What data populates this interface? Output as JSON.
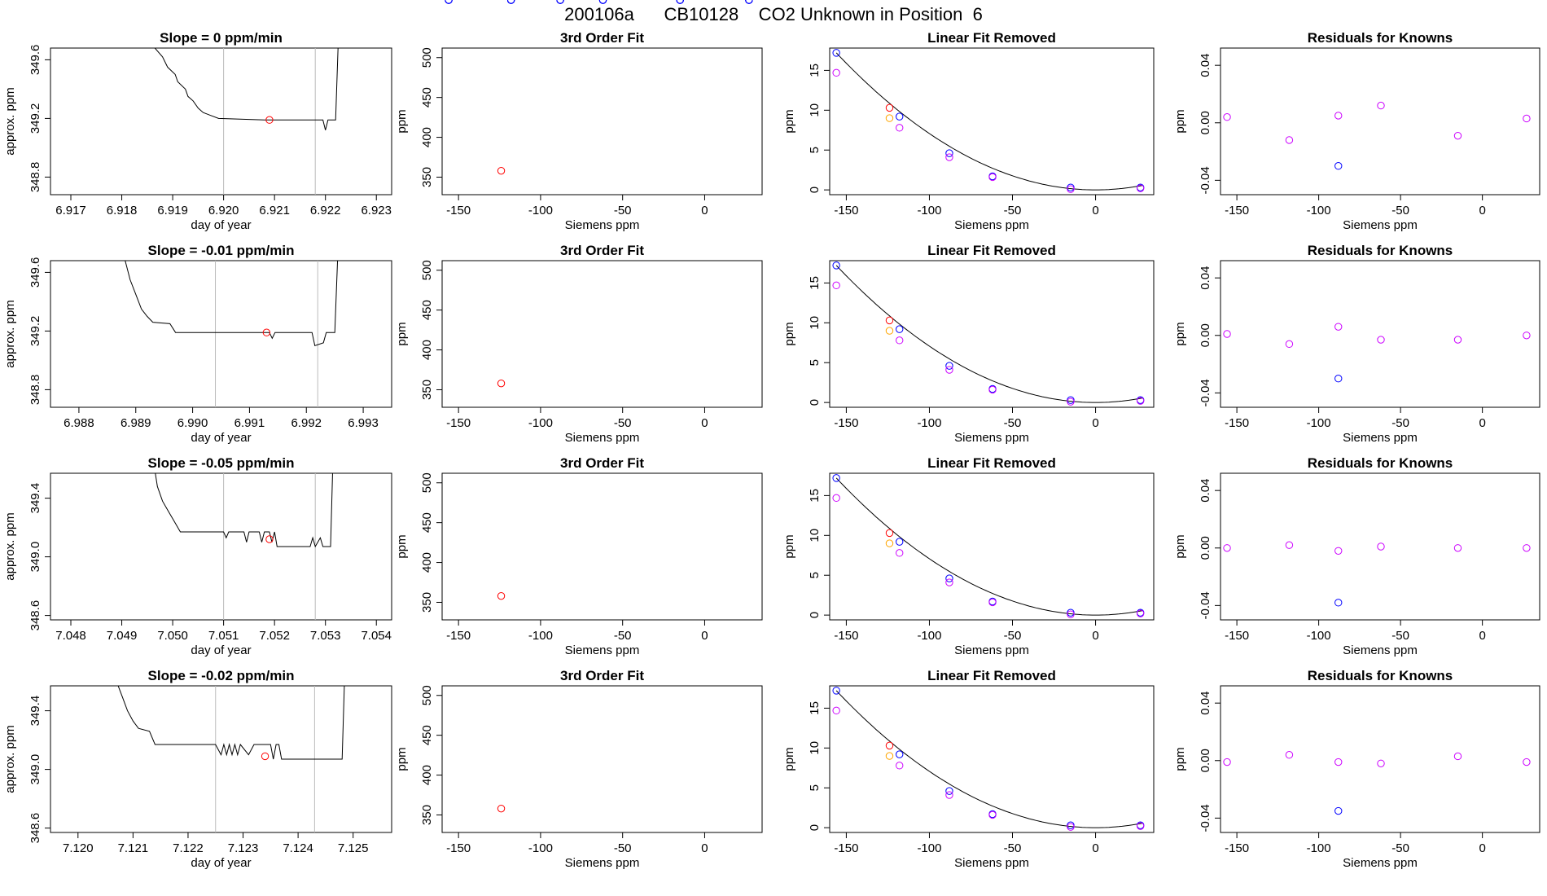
{
  "title": "200106a      CB10128    CO2 Unknown in Position  6",
  "siemens_x": [
    -156,
    -124,
    -118,
    -88,
    -62,
    -15,
    27
  ],
  "fit_y": {
    "ylim": [
      328,
      512
    ],
    "yticks": [
      350,
      400,
      450,
      500
    ],
    "ytick_labels": [
      "350",
      "400",
      "450",
      "500"
    ]
  },
  "linfit_known_y": [
    17.2,
    9.2,
    4.6,
    1.7,
    0.3,
    0.3
  ],
  "linfit_alt_y": [
    14.7,
    7.8,
    4.1,
    1.6,
    0.1,
    0.2
  ],
  "colors": {
    "known": "#0000ff",
    "unknown": "#ff0000",
    "alt": "#cc00ff",
    "orange": "#ffa500"
  },
  "rows": [
    {
      "slope_title": "Slope =  0  ppm/min",
      "ts_xlim": [
        6.9166,
        6.9233
      ],
      "ts_xticks": [
        "6.917",
        "6.918",
        "6.919",
        "6.920",
        "6.921",
        "6.922",
        "6.923"
      ],
      "ts_ylim": [
        348.68,
        349.68
      ],
      "ts_yticks": [
        "348.8",
        "349.2",
        "349.6"
      ],
      "ts_vlines": [
        6.92,
        6.9218
      ],
      "ts_line": [
        [
          6.9186,
          349.7
        ],
        [
          6.9188,
          349.62
        ],
        [
          6.9189,
          349.55
        ],
        [
          6.91905,
          349.5
        ],
        [
          6.9191,
          349.45
        ],
        [
          6.91925,
          349.4
        ],
        [
          6.9193,
          349.35
        ],
        [
          6.9194,
          349.32
        ],
        [
          6.9195,
          349.27
        ],
        [
          6.9196,
          349.24
        ],
        [
          6.91975,
          349.22
        ],
        [
          6.9199,
          349.2
        ],
        [
          6.9208,
          349.19
        ],
        [
          6.92195,
          349.19
        ],
        [
          6.922,
          349.12
        ],
        [
          6.92205,
          349.19
        ],
        [
          6.9222,
          349.19
        ],
        [
          6.92225,
          349.7
        ]
      ],
      "ts_point": [
        6.9209,
        349.19
      ],
      "fit_unknown": [
        -124,
        358
      ],
      "linfit_unknown": [
        -124,
        10.3
      ],
      "linfit_orange": [
        -124,
        9.0
      ],
      "resid_alt": [
        [
          -156,
          0.004
        ],
        [
          -118,
          -0.012
        ],
        [
          -88,
          0.005
        ],
        [
          -62,
          0.012
        ],
        [
          -15,
          -0.009
        ],
        [
          27,
          0.003
        ]
      ],
      "resid_known": [
        [
          -88,
          -0.03
        ]
      ]
    },
    {
      "slope_title": "Slope =  -0.01  ppm/min",
      "ts_xlim": [
        6.9875,
        6.9935
      ],
      "ts_xticks": [
        "6.988",
        "6.989",
        "6.990",
        "6.991",
        "6.992",
        "6.993"
      ],
      "ts_ylim": [
        348.68,
        349.68
      ],
      "ts_yticks": [
        "348.8",
        "349.2",
        "349.6"
      ],
      "ts_vlines": [
        6.9904,
        6.9922
      ],
      "ts_line": [
        [
          6.9888,
          349.7
        ],
        [
          6.9889,
          349.55
        ],
        [
          6.989,
          349.45
        ],
        [
          6.9891,
          349.35
        ],
        [
          6.9892,
          349.3
        ],
        [
          6.9893,
          349.26
        ],
        [
          6.9896,
          349.25
        ],
        [
          6.9897,
          349.19
        ],
        [
          6.99135,
          349.19
        ],
        [
          6.9914,
          349.15
        ],
        [
          6.99145,
          349.19
        ],
        [
          6.9921,
          349.19
        ],
        [
          6.99215,
          349.1
        ],
        [
          6.9923,
          349.12
        ],
        [
          6.99235,
          349.19
        ],
        [
          6.9925,
          349.19
        ],
        [
          6.99255,
          349.7
        ]
      ],
      "ts_point": [
        6.9913,
        349.19
      ],
      "fit_unknown": [
        -124,
        358
      ],
      "linfit_unknown": [
        -124,
        10.3
      ],
      "linfit_orange": [
        -124,
        9.0
      ],
      "resid_alt": [
        [
          -156,
          0.001
        ],
        [
          -118,
          -0.006
        ],
        [
          -88,
          0.006
        ],
        [
          -62,
          -0.003
        ],
        [
          -15,
          -0.003
        ],
        [
          27,
          0.0
        ]
      ],
      "resid_known": [
        [
          -88,
          -0.03
        ]
      ]
    },
    {
      "slope_title": "Slope =  -0.05  ppm/min",
      "ts_xlim": [
        7.0476,
        7.0543
      ],
      "ts_xticks": [
        "7.048",
        "7.049",
        "7.050",
        "7.051",
        "7.052",
        "7.053",
        "7.054"
      ],
      "ts_ylim": [
        348.57,
        349.57
      ],
      "ts_yticks": [
        "348.6",
        "349.0",
        "349.4"
      ],
      "ts_vlines": [
        7.051,
        7.0528
      ],
      "ts_line": [
        [
          7.0496,
          349.7
        ],
        [
          7.0497,
          349.48
        ],
        [
          7.0498,
          349.38
        ],
        [
          7.0499,
          349.32
        ],
        [
          7.05,
          349.26
        ],
        [
          7.05015,
          349.17
        ],
        [
          7.051,
          349.17
        ],
        [
          7.05105,
          349.13
        ],
        [
          7.0511,
          349.17
        ],
        [
          7.0514,
          349.17
        ],
        [
          7.05145,
          349.1
        ],
        [
          7.0515,
          349.17
        ],
        [
          7.0517,
          349.17
        ],
        [
          7.05175,
          349.1
        ],
        [
          7.0518,
          349.17
        ],
        [
          7.0519,
          349.17
        ],
        [
          7.05195,
          349.1
        ],
        [
          7.052,
          349.17
        ],
        [
          7.05205,
          349.07
        ],
        [
          7.0527,
          349.07
        ],
        [
          7.05275,
          349.13
        ],
        [
          7.0528,
          349.07
        ],
        [
          7.0529,
          349.13
        ],
        [
          7.05295,
          349.07
        ],
        [
          7.0531,
          349.07
        ],
        [
          7.05315,
          349.7
        ]
      ],
      "ts_point": [
        7.0519,
        349.12
      ],
      "fit_unknown": [
        -124,
        358
      ],
      "linfit_unknown": [
        -124,
        10.3
      ],
      "linfit_orange": [
        -124,
        9.0
      ],
      "resid_alt": [
        [
          -156,
          0.0
        ],
        [
          -118,
          0.002
        ],
        [
          -88,
          -0.002
        ],
        [
          -62,
          0.001
        ],
        [
          -15,
          0.0
        ],
        [
          27,
          0.0
        ]
      ],
      "resid_known": [
        [
          -88,
          -0.038
        ]
      ]
    },
    {
      "slope_title": "Slope =  -0.02  ppm/min",
      "ts_xlim": [
        7.1195,
        7.1257
      ],
      "ts_xticks": [
        "7.120",
        "7.121",
        "7.122",
        "7.123",
        "7.124",
        "7.125"
      ],
      "ts_ylim": [
        348.57,
        349.57
      ],
      "ts_yticks": [
        "348.6",
        "349.0",
        "349.4"
      ],
      "ts_vlines": [
        7.1225,
        7.1243
      ],
      "ts_line": [
        [
          7.1207,
          349.6
        ],
        [
          7.1208,
          349.5
        ],
        [
          7.1209,
          349.4
        ],
        [
          7.121,
          349.33
        ],
        [
          7.1211,
          349.28
        ],
        [
          7.1213,
          349.26
        ],
        [
          7.1214,
          349.17
        ],
        [
          7.1225,
          349.17
        ],
        [
          7.1226,
          349.1
        ],
        [
          7.12265,
          349.17
        ],
        [
          7.1227,
          349.1
        ],
        [
          7.12275,
          349.17
        ],
        [
          7.1228,
          349.1
        ],
        [
          7.12285,
          349.17
        ],
        [
          7.1229,
          349.1
        ],
        [
          7.12295,
          349.17
        ],
        [
          7.1231,
          349.1
        ],
        [
          7.1232,
          349.17
        ],
        [
          7.1235,
          349.17
        ],
        [
          7.12355,
          349.07
        ],
        [
          7.1236,
          349.17
        ],
        [
          7.12365,
          349.17
        ],
        [
          7.1237,
          349.07
        ],
        [
          7.1244,
          349.07
        ],
        [
          7.1248,
          349.07
        ],
        [
          7.12485,
          349.7
        ]
      ],
      "ts_point": [
        7.1234,
        349.09
      ],
      "fit_unknown": [
        -124,
        358
      ],
      "linfit_unknown": [
        -124,
        10.3
      ],
      "linfit_orange": [
        -124,
        9.0
      ],
      "resid_alt": [
        [
          -156,
          -0.001
        ],
        [
          -118,
          0.004
        ],
        [
          -88,
          -0.001
        ],
        [
          -62,
          -0.002
        ],
        [
          -15,
          0.003
        ],
        [
          27,
          -0.001
        ]
      ],
      "resid_known": [
        [
          -88,
          -0.035
        ]
      ]
    }
  ],
  "chart_data": [
    {
      "type": "line",
      "title": "Slope =  0  ppm/min",
      "xlabel": "day of year",
      "ylabel": "approx. ppm",
      "xlim": [
        6.9166,
        6.9233
      ],
      "ylim": [
        348.68,
        349.68
      ]
    },
    {
      "type": "scatter",
      "title": "3rd Order Fit",
      "xlabel": "Siemens ppm",
      "ylabel": "ppm",
      "xlim": [
        -160,
        35
      ],
      "ylim": [
        328,
        512
      ],
      "xticks": [
        "-150",
        "-100",
        "-50",
        "0"
      ],
      "yticks": [
        "350",
        "400",
        "450",
        "500"
      ]
    },
    {
      "type": "scatter",
      "title": "Linear Fit Removed",
      "xlabel": "Siemens ppm",
      "ylabel": "ppm",
      "xlim": [
        -160,
        35
      ],
      "ylim": [
        -0.6,
        17.8
      ],
      "xticks": [
        "-150",
        "-100",
        "-50",
        "0"
      ],
      "yticks": [
        "0",
        "5",
        "10",
        "15"
      ]
    },
    {
      "type": "scatter",
      "title": "Residuals for Knowns",
      "xlabel": "Siemens ppm",
      "ylabel": "ppm",
      "xlim": [
        -160,
        35
      ],
      "ylim": [
        -0.05,
        0.052
      ],
      "xticks": [
        "-150",
        "-100",
        "-50",
        "0"
      ],
      "yticks": [
        "-0.04",
        "0.00",
        "0.04"
      ]
    }
  ],
  "labels": {
    "day_of_year": "day of year",
    "approx_ppm": "approx. ppm",
    "siemens_ppm": "Siemens ppm",
    "ppm": "ppm",
    "fit_title": "3rd Order Fit",
    "linfit_title": "Linear Fit Removed",
    "resid_title": "Residuals for Knowns"
  },
  "shared_x": {
    "xlim": [
      -160,
      35
    ],
    "xticks": [
      -150,
      -100,
      -50,
      0
    ],
    "xtick_labels": [
      "-150",
      "-100",
      "-50",
      "0"
    ]
  },
  "linfit_y": {
    "ylim": [
      -0.6,
      17.8
    ],
    "yticks": [
      0,
      5,
      10,
      15
    ],
    "ytick_labels": [
      "0",
      "5",
      "10",
      "15"
    ]
  },
  "resid_y": {
    "ylim": [
      -0.05,
      0.052
    ],
    "yticks": [
      -0.04,
      0.0,
      0.04
    ],
    "ytick_labels": [
      "-0.04",
      "0.00",
      "0.04"
    ]
  }
}
